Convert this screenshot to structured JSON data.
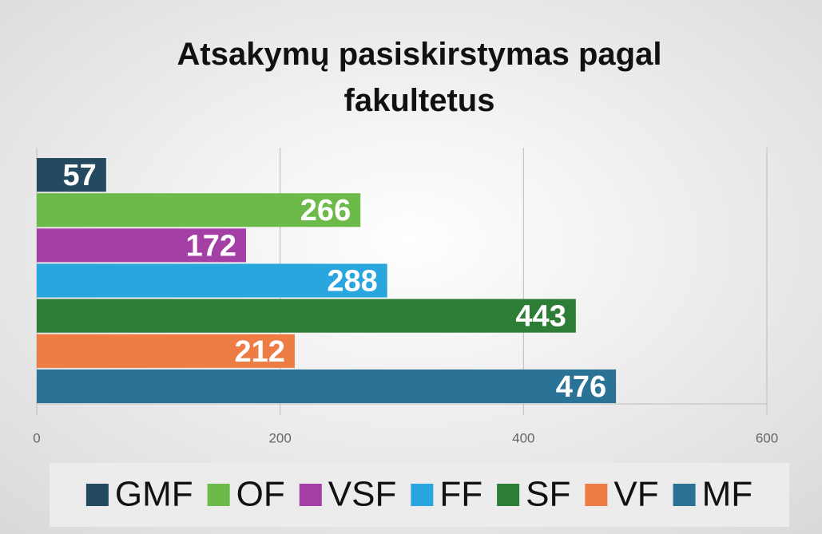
{
  "chart_data": {
    "type": "bar",
    "orientation": "horizontal",
    "title": "Atsakymų pasiskirstymas pagal fakultetus",
    "series": [
      {
        "name": "GMF",
        "color": "#234a5e",
        "values": [
          57
        ]
      },
      {
        "name": "OF",
        "color": "#6cbb4a",
        "values": [
          266
        ]
      },
      {
        "name": "VSF",
        "color": "#a43fa6",
        "values": [
          172
        ]
      },
      {
        "name": "FF",
        "color": "#2aa6df",
        "values": [
          288
        ]
      },
      {
        "name": "SF",
        "color": "#2e7d36",
        "values": [
          443
        ]
      },
      {
        "name": "VF",
        "color": "#ed7d44",
        "values": [
          212
        ]
      },
      {
        "name": "MF",
        "color": "#2b7396",
        "values": [
          476
        ]
      }
    ],
    "xlim": [
      0,
      600
    ],
    "xticks": [
      0,
      200,
      400,
      600
    ],
    "grid": true,
    "legend": "bottom"
  }
}
